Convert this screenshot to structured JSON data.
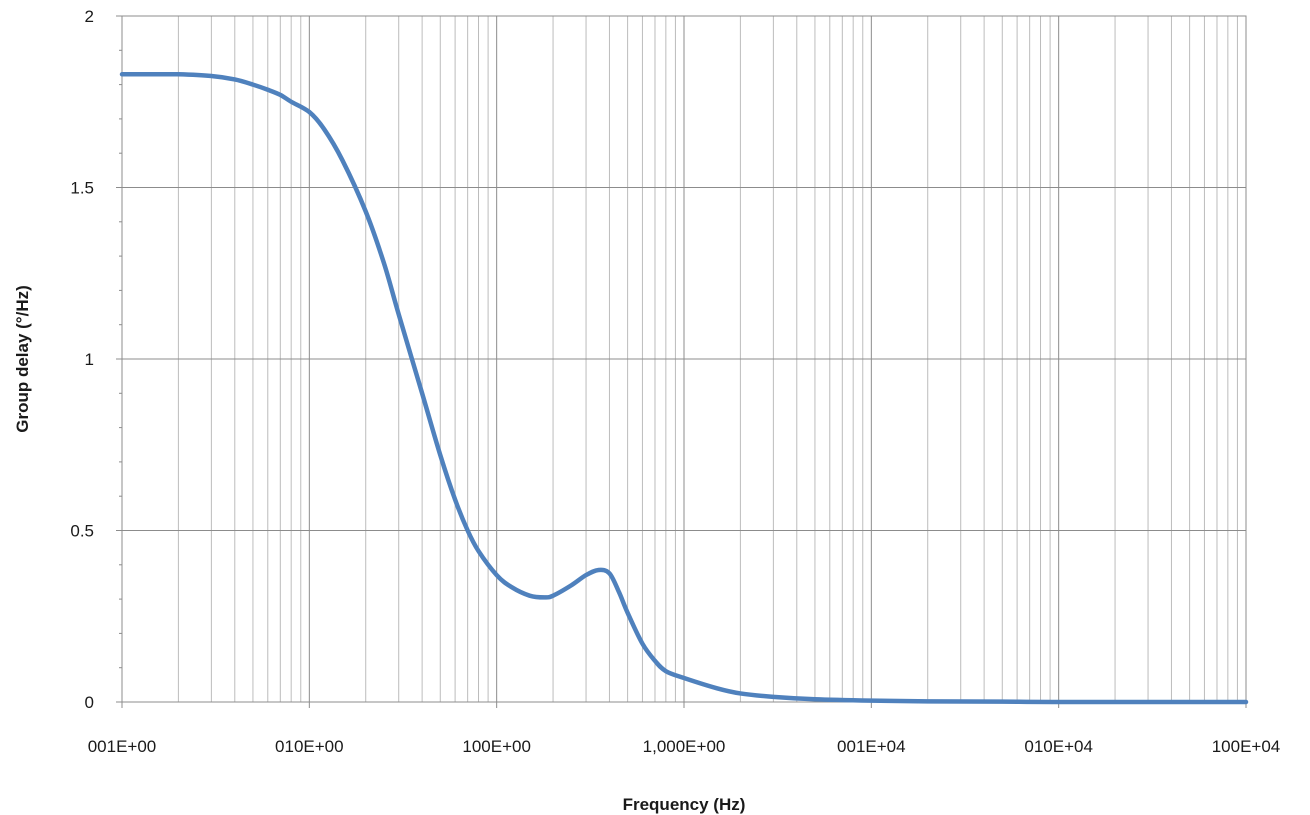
{
  "chart_data": {
    "type": "line",
    "title": "",
    "xlabel": "Frequency (Hz)",
    "ylabel": "Group delay (°/Hz)",
    "x_scale": "log",
    "xlim": [
      1,
      100000
    ],
    "ylim": [
      0,
      2
    ],
    "grid": true,
    "x_ticks": [
      {
        "value": 1,
        "label": "001E+00"
      },
      {
        "value": 10,
        "label": "010E+00"
      },
      {
        "value": 100,
        "label": "100E+00"
      },
      {
        "value": 1000,
        "label": "1,000E+00"
      },
      {
        "value": 10000,
        "label": "001E+04"
      },
      {
        "value": 100000,
        "label": "010E+04"
      },
      {
        "value": 1000000,
        "label": "100E+04"
      }
    ],
    "y_ticks": [
      {
        "value": 0,
        "label": "0"
      },
      {
        "value": 0.5,
        "label": "0.5"
      },
      {
        "value": 1,
        "label": "1"
      },
      {
        "value": 1.5,
        "label": "1.5"
      },
      {
        "value": 2,
        "label": "2"
      }
    ],
    "series": [
      {
        "color": "#4f81bd",
        "x": [
          1,
          1.5,
          2,
          3,
          4,
          5,
          6,
          7,
          8,
          10,
          12,
          15,
          20,
          25,
          30,
          40,
          50,
          60,
          70,
          80,
          100,
          120,
          150,
          180,
          200,
          250,
          300,
          350,
          400,
          450,
          500,
          600,
          700,
          800,
          1000,
          1500,
          2000,
          3000,
          5000,
          10000,
          20000,
          50000,
          100000,
          1000000
        ],
        "y": [
          1.83,
          1.83,
          1.83,
          1.825,
          1.815,
          1.8,
          1.785,
          1.77,
          1.75,
          1.72,
          1.67,
          1.58,
          1.43,
          1.28,
          1.13,
          0.9,
          0.72,
          0.59,
          0.5,
          0.44,
          0.37,
          0.335,
          0.31,
          0.305,
          0.31,
          0.34,
          0.37,
          0.385,
          0.375,
          0.32,
          0.26,
          0.17,
          0.12,
          0.09,
          0.07,
          0.04,
          0.025,
          0.015,
          0.008,
          0.004,
          0.002,
          0.001,
          0.0,
          0.0
        ]
      }
    ]
  }
}
